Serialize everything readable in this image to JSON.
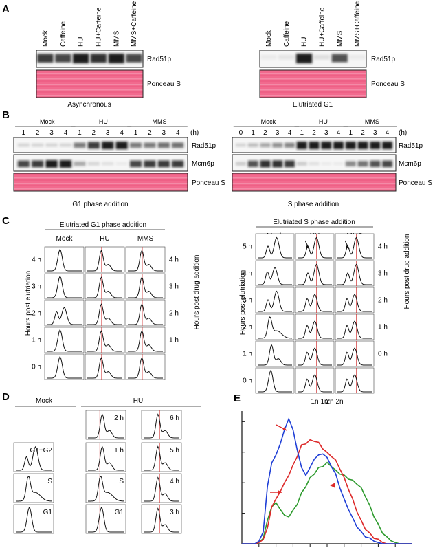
{
  "panels": {
    "A": {
      "letter": "A",
      "left": {
        "lanes": [
          "Mock",
          "Caffeine",
          "HU",
          "HU+Caffeine",
          "MMS",
          "MMS+Caffeine"
        ],
        "rows": [
          "Rad51p",
          "Ponceau S"
        ],
        "caption": "Asynchronous",
        "rad51_intensity": [
          0.85,
          0.8,
          1.0,
          0.9,
          1.0,
          0.8
        ]
      },
      "right": {
        "lanes": [
          "Mock",
          "Caffeine",
          "HU",
          "HU+Caffeine",
          "MMS",
          "MMS+Caffeine"
        ],
        "rows": [
          "Rad51p",
          "Ponceau S"
        ],
        "caption": "Elutriated G1",
        "rad51_intensity": [
          0.05,
          0.08,
          1.0,
          0.1,
          0.75,
          0.05
        ]
      }
    },
    "B": {
      "letter": "B",
      "unit": "(h)",
      "left": {
        "groups": [
          {
            "name": "Mock",
            "lanes": [
              "1",
              "2",
              "3",
              "4"
            ]
          },
          {
            "name": "HU",
            "lanes": [
              "1",
              "2",
              "3",
              "4"
            ]
          },
          {
            "name": "MMS",
            "lanes": [
              "1",
              "2",
              "3",
              "4"
            ]
          }
        ],
        "rows": [
          "Rad51p",
          "Mcm6p",
          "Ponceau S"
        ],
        "caption": "G1 phase addition",
        "rad51_intensity": [
          0.15,
          0.15,
          0.15,
          0.15,
          0.55,
          0.85,
          1.0,
          1.0,
          0.55,
          0.55,
          0.6,
          0.6
        ],
        "mcm_intensity": [
          0.8,
          0.85,
          1.0,
          1.0,
          0.35,
          0.15,
          0.1,
          0.05,
          0.8,
          0.85,
          0.85,
          0.85
        ]
      },
      "right": {
        "groups": [
          {
            "name": "Mock",
            "lanes": [
              "0",
              "1",
              "2",
              "3",
              "4"
            ]
          },
          {
            "name": "HU",
            "lanes": [
              "1",
              "2",
              "3",
              "4"
            ]
          },
          {
            "name": "MMS",
            "lanes": [
              "1",
              "2",
              "3",
              "4"
            ]
          }
        ],
        "rows": [
          "Rad51p",
          "Mcm6p",
          "Ponceau S"
        ],
        "caption": "S phase addition",
        "rad51_intensity": [
          0.15,
          0.25,
          0.35,
          0.45,
          0.5,
          1.0,
          1.0,
          1.0,
          1.0,
          1.0,
          1.0,
          1.0,
          1.0
        ],
        "mcm_intensity": [
          0.2,
          0.75,
          0.9,
          0.9,
          0.85,
          0.2,
          0.1,
          0.05,
          0.05,
          0.5,
          0.6,
          0.75,
          0.8
        ]
      }
    },
    "C": {
      "letter": "C",
      "left": {
        "title": "Elutriated G1 phase addition",
        "columns": [
          "Mock",
          "HU",
          "MMS"
        ],
        "row_labels": [
          "4 h",
          "3 h",
          "2 h",
          "1 h",
          "0 h"
        ],
        "right_labels": [
          "4 h",
          "3 h",
          "2 h",
          "1 h"
        ],
        "ylabel_left": "Hours post elutriation",
        "ylabel_right": "Hours post drug addition"
      },
      "right": {
        "title": "Elutriated S phase addition",
        "columns": [
          "Mock",
          "HU",
          "MMS"
        ],
        "row_labels": [
          "5 h",
          "4 h",
          "3 h",
          "2 h",
          "1 h",
          "0 h"
        ],
        "right_labels": [
          "4 h",
          "3 h",
          "2 h",
          "1 h",
          "0 h"
        ],
        "ylabel_left": "Hours post elutriation",
        "ylabel_right": "Hours post drug addition",
        "xticks": [
          "1n",
          "2n"
        ]
      }
    },
    "D": {
      "letter": "D",
      "mock_title": "Mock",
      "hu_title": "HU",
      "mock_labels": [
        "G1+G2",
        "S",
        "G1"
      ],
      "hu_col1_labels": [
        "2 h",
        "1 h",
        "S",
        "G1"
      ],
      "hu_col2_labels": [
        "6 h",
        "5 h",
        "4 h",
        "3 h"
      ]
    },
    "E": {
      "letter": "E"
    }
  },
  "colors": {
    "ponceau": "#f0507a",
    "band": "#1a1a1a",
    "red_line": "#cc2222",
    "blue": "#1f3fd6",
    "red": "#dd2a2a",
    "green": "#2d9a2d",
    "purple": "#7a3fb0"
  },
  "chart_data": {
    "type": "line",
    "title": "",
    "xlabel": "",
    "ylabel": "",
    "x": [
      0,
      1,
      2,
      3,
      4,
      5,
      6,
      7,
      8,
      9,
      10,
      11,
      12,
      13,
      14,
      15,
      16,
      17,
      18,
      19,
      20,
      21,
      22,
      23,
      24,
      25,
      26,
      27,
      28,
      29,
      30,
      31,
      32,
      33,
      34,
      35,
      36,
      37,
      38,
      39,
      40
    ],
    "series": [
      {
        "values": [
          0,
          0,
          0,
          0,
          2,
          10,
          45,
          65,
          70,
          80,
          90,
          100,
          90,
          75,
          60,
          55,
          60,
          68,
          70,
          72,
          68,
          62,
          55,
          45,
          35,
          28,
          20,
          14,
          9,
          6,
          4,
          2,
          1,
          0,
          0,
          0,
          0,
          0,
          0,
          0,
          0
        ]
      },
      {
        "values": [
          0,
          0,
          0,
          0,
          1,
          4,
          12,
          30,
          35,
          42,
          48,
          55,
          62,
          70,
          78,
          80,
          82,
          82,
          80,
          76,
          72,
          70,
          66,
          60,
          52,
          44,
          35,
          26,
          18,
          12,
          8,
          5,
          3,
          1,
          0,
          0,
          0,
          0,
          0,
          0,
          0
        ]
      },
      {
        "values": [
          0,
          0,
          0,
          0,
          1,
          5,
          18,
          30,
          32,
          28,
          22,
          22,
          26,
          32,
          40,
          46,
          52,
          56,
          60,
          62,
          64,
          62,
          58,
          56,
          54,
          52,
          50,
          48,
          44,
          38,
          30,
          22,
          15,
          9,
          5,
          3,
          1,
          0,
          0,
          0,
          0
        ]
      }
    ],
    "ylim": [
      0,
      100
    ]
  }
}
